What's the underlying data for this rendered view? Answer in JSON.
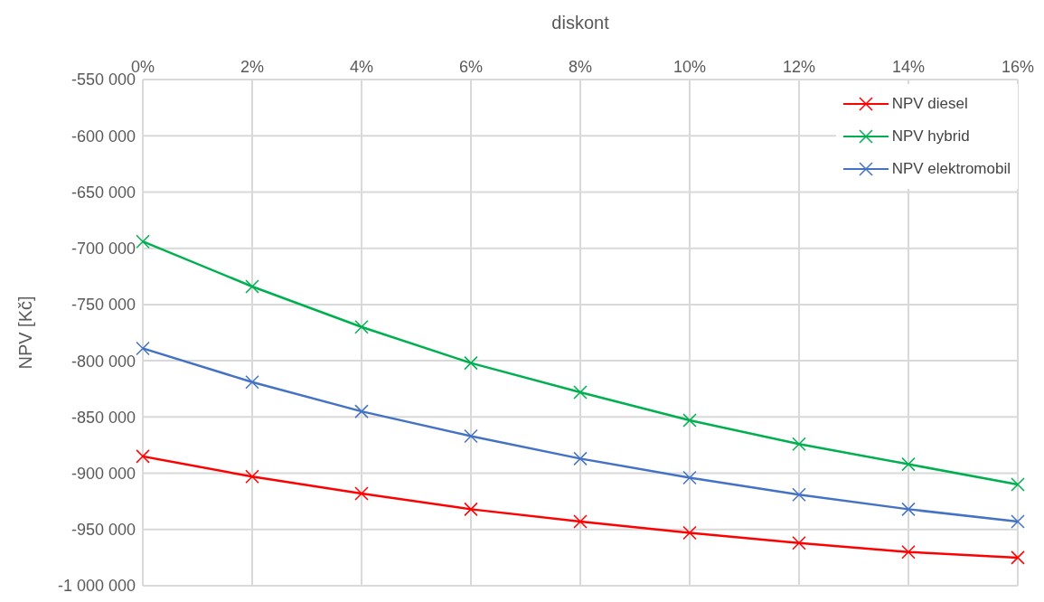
{
  "chart_data": {
    "type": "line",
    "xlabel": "diskont",
    "ylabel": "NPV [Kč]",
    "x": [
      0,
      2,
      4,
      6,
      8,
      10,
      12,
      14,
      16
    ],
    "xlim": [
      0,
      16
    ],
    "xticks": [
      {
        "value": 0,
        "label": "0%"
      },
      {
        "value": 2,
        "label": "2%"
      },
      {
        "value": 4,
        "label": "4%"
      },
      {
        "value": 6,
        "label": "6%"
      },
      {
        "value": 8,
        "label": "8%"
      },
      {
        "value": 10,
        "label": "10%"
      },
      {
        "value": 12,
        "label": "12%"
      },
      {
        "value": 14,
        "label": "14%"
      },
      {
        "value": 16,
        "label": "16%"
      }
    ],
    "ylim": [
      -1000000,
      -550000
    ],
    "yticks": [
      {
        "value": -1000000,
        "label": "-1 000 000"
      },
      {
        "value": -950000,
        "label": "-950 000"
      },
      {
        "value": -900000,
        "label": "-900 000"
      },
      {
        "value": -850000,
        "label": "-850 000"
      },
      {
        "value": -800000,
        "label": "-800 000"
      },
      {
        "value": -750000,
        "label": "-750 000"
      },
      {
        "value": -700000,
        "label": "-700 000"
      },
      {
        "value": -650000,
        "label": "-650 000"
      },
      {
        "value": -600000,
        "label": "-600 000"
      },
      {
        "value": -550000,
        "label": "-550 000"
      }
    ],
    "series": [
      {
        "name": "NPV diesel",
        "color": "#ff0000",
        "values": [
          -885000,
          -903000,
          -918000,
          -932000,
          -943000,
          -953000,
          -962000,
          -970000,
          -975000
        ]
      },
      {
        "name": "NPV hybrid",
        "color": "#00b050",
        "values": [
          -694000,
          -734000,
          -770000,
          -802000,
          -828000,
          -853000,
          -874000,
          -892000,
          -910000
        ]
      },
      {
        "name": "NPV elektromobil",
        "color": "#4472c4",
        "values": [
          -789000,
          -819000,
          -845000,
          -867000,
          -887000,
          -904000,
          -919000,
          -932000,
          -943000
        ]
      }
    ],
    "grid": true,
    "legend": "top right",
    "marker": "cross",
    "line_style": "solid"
  }
}
